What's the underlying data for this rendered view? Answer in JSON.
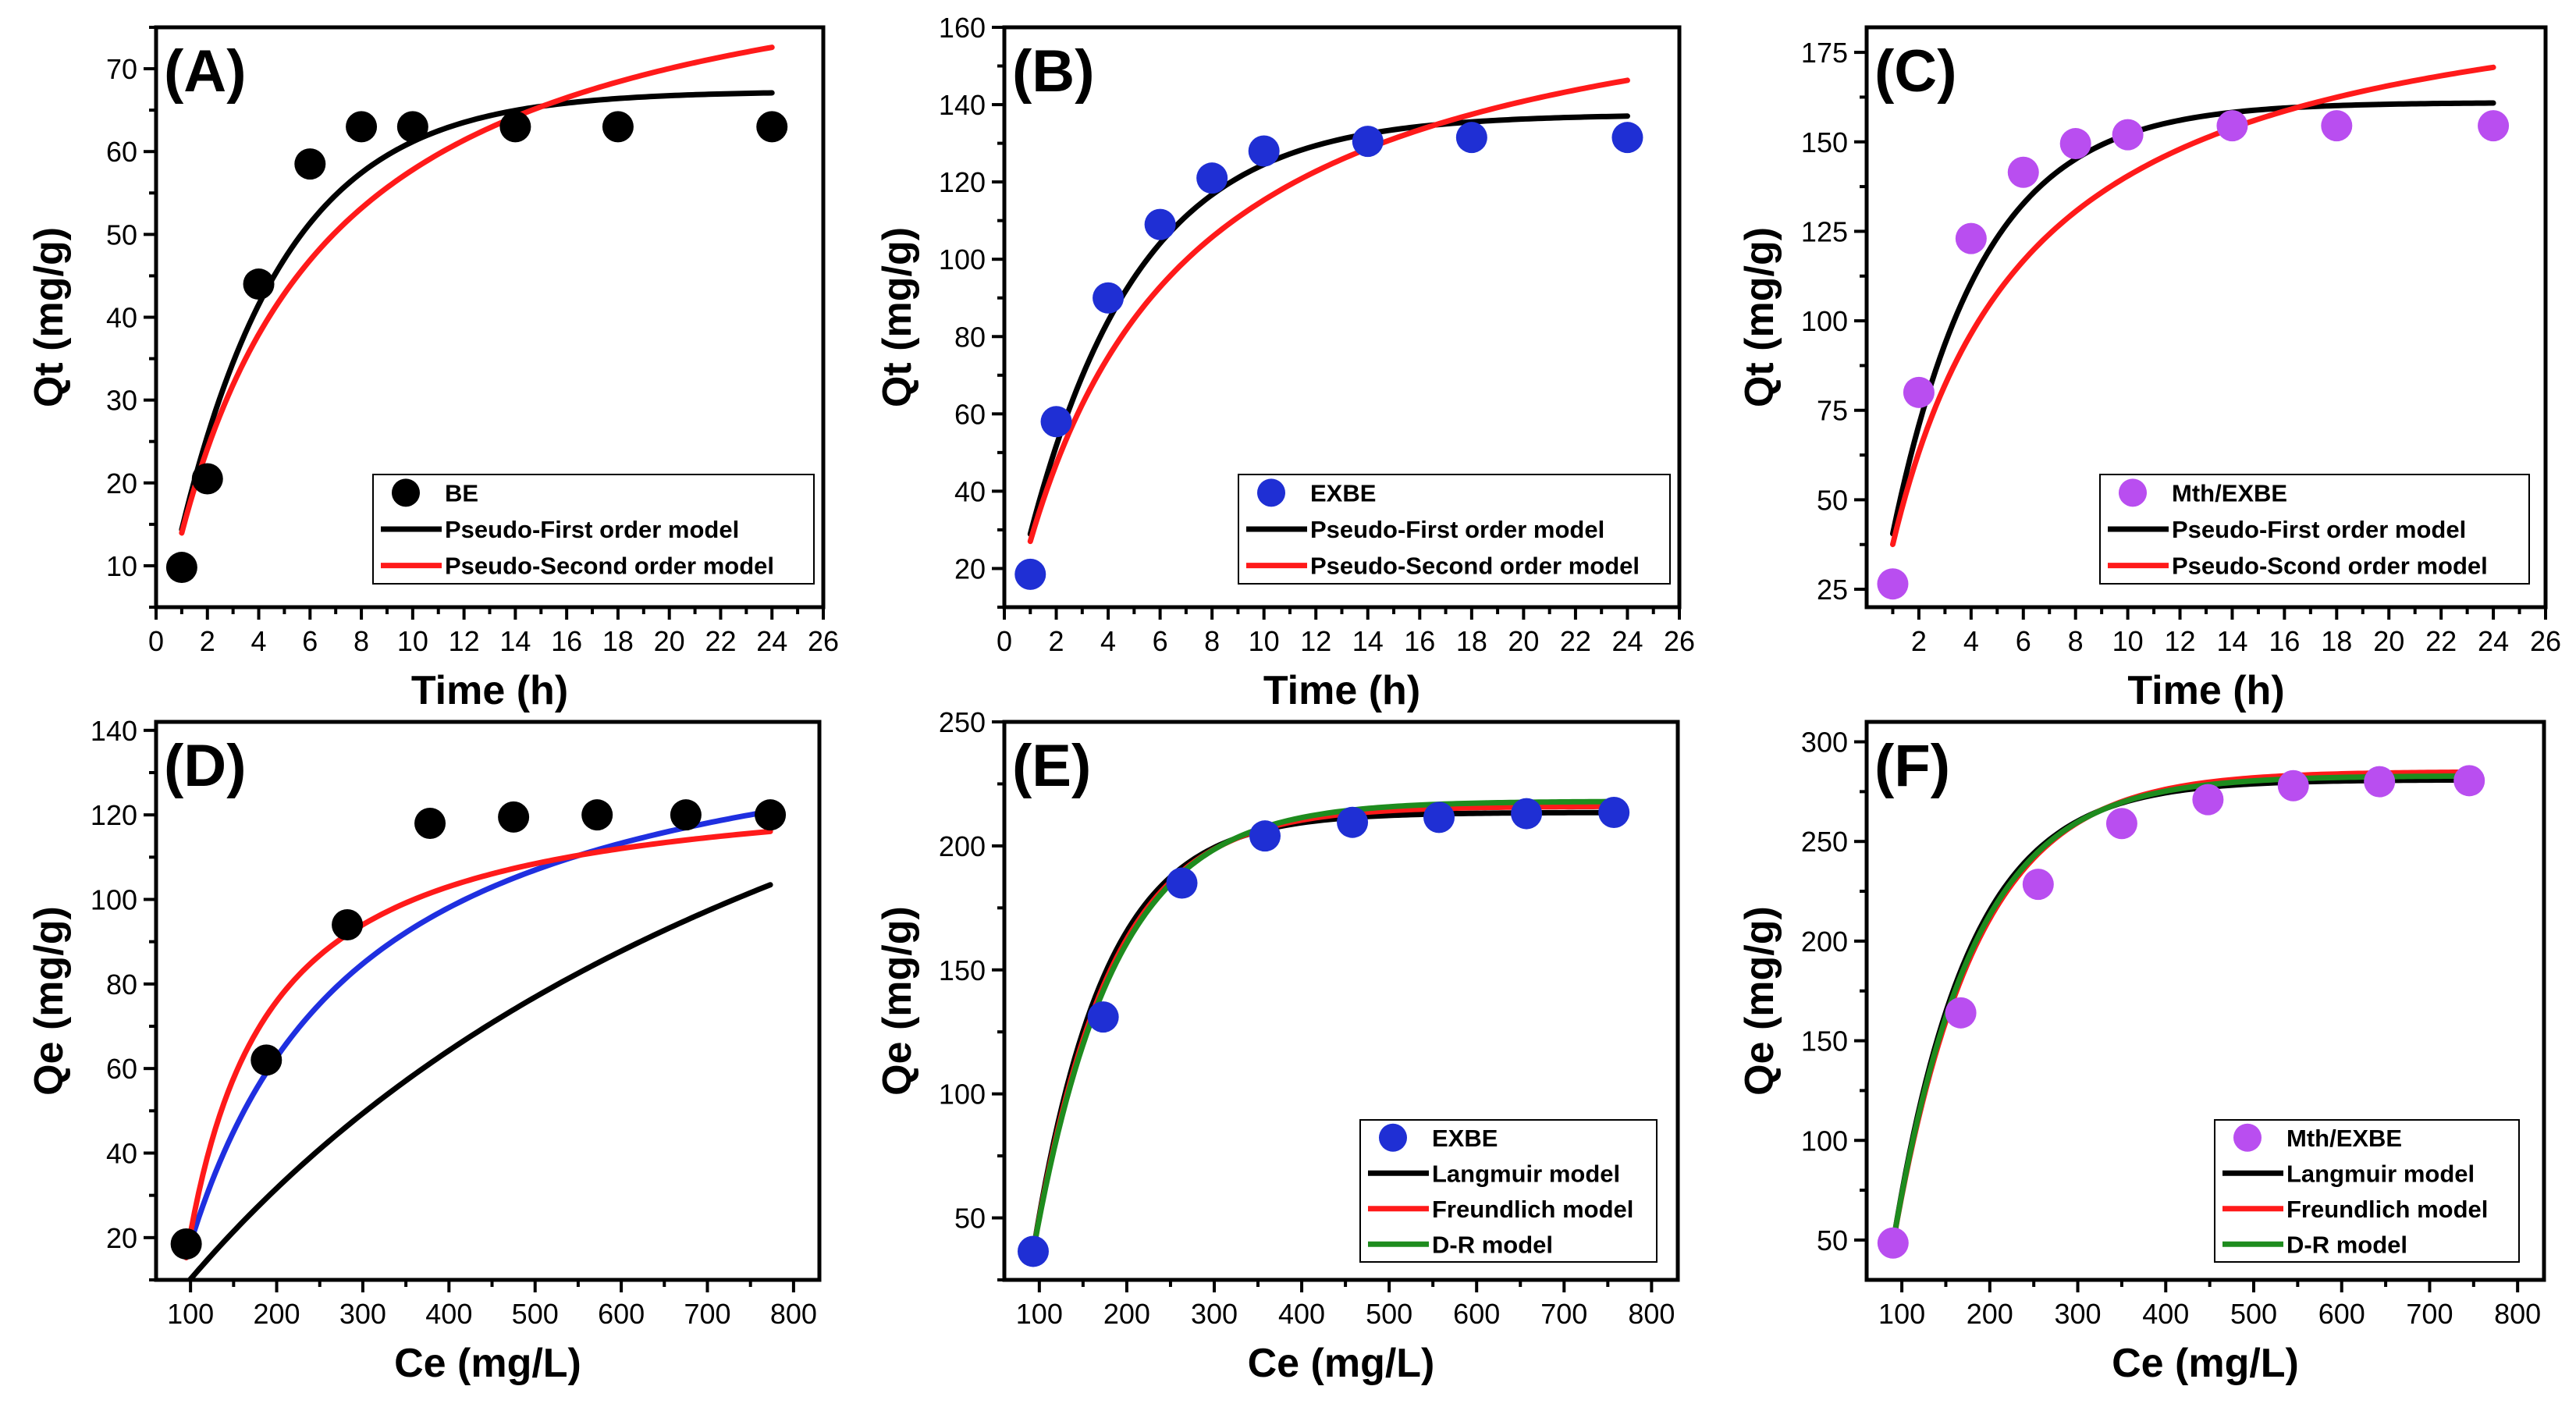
{
  "chart_data": [
    {
      "type": "scatter",
      "panel_label": "(A)",
      "xlabel": "Time (h)",
      "ylabel": "Qt (mg/g)",
      "xlim": [
        0,
        26
      ],
      "ylim": [
        5,
        75
      ],
      "xticks": [
        0,
        2,
        4,
        6,
        8,
        10,
        12,
        14,
        16,
        18,
        20,
        22,
        24,
        26
      ],
      "yticks": [
        10,
        20,
        30,
        40,
        50,
        60,
        70
      ],
      "legend_position": "bottom-right",
      "marker_color": "#000000",
      "points": {
        "name": "BE",
        "x": [
          1,
          2,
          4,
          6,
          8,
          10,
          14,
          18,
          24
        ],
        "y": [
          9.8,
          20.5,
          44,
          58.5,
          63,
          63,
          63,
          63,
          63
        ]
      },
      "series": [
        {
          "name": "Pseudo-First order model",
          "color": "#000000",
          "model": "pfo",
          "params": {
            "qe": 67.3,
            "k": 0.24
          },
          "x_range": [
            1,
            24
          ]
        },
        {
          "name": "Pseudo-Second order model",
          "color": "#ff1a1a",
          "model": "pso",
          "params": {
            "qe": 88.8,
            "k": 0.0021
          },
          "x_range": [
            1,
            24
          ]
        }
      ]
    },
    {
      "type": "scatter",
      "panel_label": "(B)",
      "xlabel": "Time (h)",
      "ylabel": "Qt (mg/g)",
      "xlim": [
        0,
        26
      ],
      "ylim": [
        10,
        160
      ],
      "xticks": [
        0,
        2,
        4,
        6,
        8,
        10,
        12,
        14,
        16,
        18,
        20,
        22,
        24,
        26
      ],
      "yticks": [
        20,
        40,
        60,
        80,
        100,
        120,
        140,
        160
      ],
      "legend_position": "bottom-right",
      "marker_color": "#1f2fd4",
      "points": {
        "name": "EXBE",
        "x": [
          1,
          2,
          4,
          6,
          8,
          10,
          14,
          18,
          24
        ],
        "y": [
          18.5,
          58,
          90,
          109,
          121,
          128,
          130.5,
          131.5,
          131.5
        ]
      },
      "series": [
        {
          "name": "Pseudo-First order model",
          "color": "#000000",
          "model": "pfo",
          "params": {
            "qe": 137.5,
            "k": 0.236
          },
          "x_range": [
            1,
            24
          ]
        },
        {
          "name": "Pseudo-Second order model",
          "color": "#ff1a1a",
          "model": "pso",
          "params": {
            "qe": 181.0,
            "k": 0.00097
          },
          "x_range": [
            1,
            24
          ]
        }
      ]
    },
    {
      "type": "scatter",
      "panel_label": "(C)",
      "xlabel": "Time (h)",
      "ylabel": "Qt (mg/g)",
      "xlim": [
        0,
        26
      ],
      "ylim": [
        20,
        182
      ],
      "xticks": [
        2,
        4,
        6,
        8,
        10,
        12,
        14,
        16,
        18,
        20,
        22,
        24,
        26
      ],
      "yticks": [
        25,
        50,
        75,
        100,
        125,
        150,
        175
      ],
      "legend_position": "bottom-right",
      "marker_color": "#b94ef0",
      "points": {
        "name": "Mth/EXBE",
        "x": [
          1,
          2,
          4,
          6,
          8,
          10,
          14,
          18,
          24
        ],
        "y": [
          26.5,
          80,
          123,
          141.5,
          149.5,
          152,
          154.5,
          154.5,
          154.5
        ]
      },
      "series": [
        {
          "name": "Pseudo-First order model",
          "color": "#000000",
          "model": "pfo",
          "params": {
            "qe": 161.0,
            "k": 0.29
          },
          "x_range": [
            1,
            24
          ]
        },
        {
          "name": "Pseudo-Scond order model",
          "color": "#ff1a1a",
          "model": "pso",
          "params": {
            "qe": 202.0,
            "k": 0.00113
          },
          "x_range": [
            1,
            24
          ]
        }
      ]
    },
    {
      "type": "scatter",
      "panel_label": "(D)",
      "xlabel": "Ce (mg/L)",
      "ylabel": "Qe (mg/g)",
      "xlim": [
        60,
        830
      ],
      "ylim": [
        10,
        142
      ],
      "xticks": [
        100,
        200,
        300,
        400,
        500,
        600,
        700,
        800
      ],
      "yticks": [
        20,
        40,
        60,
        80,
        100,
        120,
        140
      ],
      "legend_position": "none",
      "marker_color": "#000000",
      "points": {
        "name": "",
        "x": [
          95,
          188,
          282,
          378,
          475,
          572,
          675,
          773
        ],
        "y": [
          18.5,
          62,
          94,
          118,
          119.5,
          120,
          120,
          120
        ]
      },
      "series": [
        {
          "name": "",
          "color": "#000000",
          "model": "lang_off",
          "params": {
            "qm": 234.0,
            "K": 0.00111,
            "c0": 59.0
          },
          "x_range": [
            95,
            773
          ]
        },
        {
          "name": "",
          "color": "#1f2fe0",
          "model": "lang_off",
          "params": {
            "qm": 151.5,
            "K": 0.00565,
            "c0": 75.0
          },
          "x_range": [
            95,
            773
          ]
        },
        {
          "name": "",
          "color": "#ff1a1a",
          "model": "lang_off",
          "params": {
            "qm": 130.0,
            "K": 0.0121,
            "c0": 84.0
          },
          "x_range": [
            95,
            773
          ]
        }
      ]
    },
    {
      "type": "scatter",
      "panel_label": "(E)",
      "xlabel": "Ce (mg/L)",
      "ylabel": "Qe (mg/g)",
      "xlim": [
        60,
        830
      ],
      "ylim": [
        25,
        250
      ],
      "xticks": [
        100,
        200,
        300,
        400,
        500,
        600,
        700,
        800
      ],
      "yticks": [
        50,
        100,
        150,
        200,
        250
      ],
      "legend_position": "bottom-right",
      "marker_color": "#1f2fd4",
      "points": {
        "name": "EXBE",
        "x": [
          93,
          173,
          263,
          358,
          458,
          557,
          657,
          757
        ],
        "y": [
          36.5,
          131,
          185,
          204,
          209.5,
          211.5,
          213,
          213.5
        ]
      },
      "series": [
        {
          "name": "Langmuir model",
          "color": "#000000",
          "model": "exp",
          "params": {
            "qm": 213.5,
            "q0": 36.5,
            "c0": 93,
            "k": 0.0122
          },
          "x_range": [
            93,
            757
          ]
        },
        {
          "name": "Freundlich model",
          "color": "#ff1a1a",
          "model": "exp",
          "params": {
            "qm": 216.0,
            "q0": 36.5,
            "c0": 93,
            "k": 0.0113
          },
          "x_range": [
            93,
            757
          ]
        },
        {
          "name": "D-R model",
          "color": "#1e8c1e",
          "model": "exp",
          "params": {
            "qm": 218.0,
            "q0": 36.5,
            "c0": 93,
            "k": 0.0108
          },
          "x_range": [
            93,
            757
          ]
        }
      ]
    },
    {
      "type": "scatter",
      "panel_label": "(F)",
      "xlabel": "Ce (mg/L)",
      "ylabel": "Qe (mg/g)",
      "xlim": [
        60,
        830
      ],
      "ylim": [
        30,
        310
      ],
      "xticks": [
        100,
        200,
        300,
        400,
        500,
        600,
        700,
        800
      ],
      "yticks": [
        50,
        100,
        150,
        200,
        250,
        300
      ],
      "legend_position": "bottom-right",
      "marker_color": "#b94ef0",
      "points": {
        "name": "Mth/EXBE",
        "x": [
          90,
          167,
          255,
          350,
          448,
          545,
          643,
          745
        ],
        "y": [
          48.5,
          164,
          228.5,
          259,
          271,
          278,
          280,
          280.5
        ]
      },
      "series": [
        {
          "name": "Langmuir model",
          "color": "#000000",
          "model": "exp",
          "params": {
            "qm": 281.0,
            "q0": 48.5,
            "c0": 90,
            "k": 0.0115
          },
          "x_range": [
            90,
            745
          ]
        },
        {
          "name": "Freundlich model",
          "color": "#ff1a1a",
          "model": "exp",
          "params": {
            "qm": 285.0,
            "q0": 48.5,
            "c0": 90,
            "k": 0.0106
          },
          "x_range": [
            90,
            745
          ]
        },
        {
          "name": "D-R model",
          "color": "#1e8c1e",
          "model": "exp",
          "params": {
            "qm": 283.0,
            "q0": 48.5,
            "c0": 90,
            "k": 0.011
          },
          "x_range": [
            90,
            745
          ]
        }
      ]
    }
  ]
}
